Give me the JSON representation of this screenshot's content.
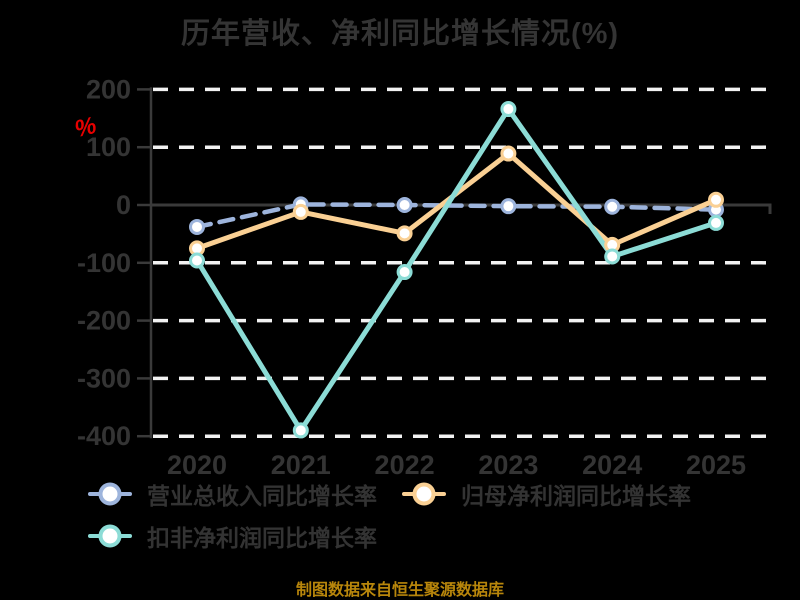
{
  "page": {
    "background_color": "#000000"
  },
  "title": {
    "text": "历年营收、净利同比增长情况(%)",
    "color": "#343434"
  },
  "y_axis_unit": {
    "symbol": "%",
    "color": "#e60000"
  },
  "footer": {
    "source_note": "制图数据来自恒生聚源数据库",
    "color": "#b8860b"
  },
  "chart_data": {
    "type": "line",
    "title": "历年营收、净利同比增长情况(%)",
    "categories": [
      "2020",
      "2021",
      "2022",
      "2023",
      "2024",
      "2025"
    ],
    "series": [
      {
        "name": "营业总收入同比增长率",
        "color": "#9db4dc",
        "line_style": "dashed",
        "marker": "circle",
        "values": [
          -38,
          1,
          0,
          -2,
          -3,
          -8
        ]
      },
      {
        "name": "归母净利润同比增长率",
        "color": "#fad094",
        "line_style": "solid",
        "marker": "circle",
        "values": [
          -75,
          -12,
          -49,
          89,
          -69,
          9
        ]
      },
      {
        "name": "扣非净利润同比增长率",
        "color": "#8cdcd6",
        "line_style": "solid",
        "marker": "circle",
        "values": [
          -96,
          -390,
          -116,
          166,
          -89,
          -31
        ]
      }
    ],
    "ylim": [
      -400,
      200
    ],
    "yticks": [
      200,
      100,
      0,
      -100,
      -200,
      -300,
      -400
    ],
    "grid": "horizontal dashed light lines, solid dark zero line",
    "legend_position": "bottom-left",
    "axis_color": "#3a3a3a",
    "tick_label_color": "#343434",
    "gridline_color": "#f2f2f2"
  }
}
